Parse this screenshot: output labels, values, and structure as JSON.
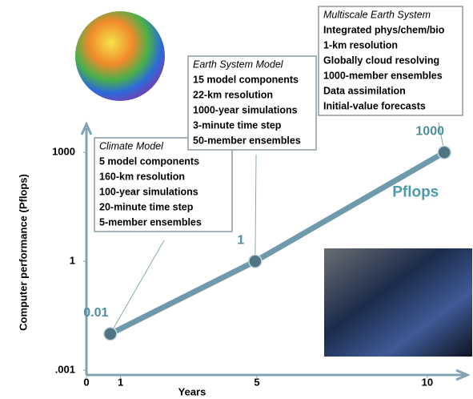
{
  "chart_data": {
    "type": "line",
    "ylabel": "Computer performance (Pflops)",
    "xlabel": "Years",
    "x": [
      0.7,
      4.95,
      10.5
    ],
    "series": [
      {
        "name": "Pflops",
        "color": "#6f9aab",
        "values": [
          0.01,
          1,
          1000
        ],
        "value_labels": [
          "0.01",
          "1",
          "1000"
        ]
      }
    ],
    "xlim": [
      0,
      11.2
    ],
    "xticks": [
      0,
      1,
      5,
      10
    ],
    "ylim": [
      0.001,
      6000
    ],
    "yscale": "log",
    "yticks": [
      {
        "value": 0.001,
        "label": ".001"
      },
      1,
      1000
    ],
    "callouts": [
      {
        "title": "Climate Model",
        "lines": [
          "5 model components",
          "160-km resolution",
          "100-year simulations",
          "20-minute time step",
          "5-member ensembles"
        ]
      },
      {
        "title": "Earth System Model",
        "lines": [
          "15 model components",
          "22-km resolution",
          "1000-year simulations",
          "3-minute time step",
          "50-member ensembles"
        ]
      },
      {
        "title": "Multiscale Earth System",
        "lines": [
          "Integrated phys/chem/bio",
          "1-km resolution",
          "Globally cloud resolving",
          "1000-member ensembles",
          "Data assimilation",
          "Initial-value forecasts"
        ]
      }
    ]
  }
}
